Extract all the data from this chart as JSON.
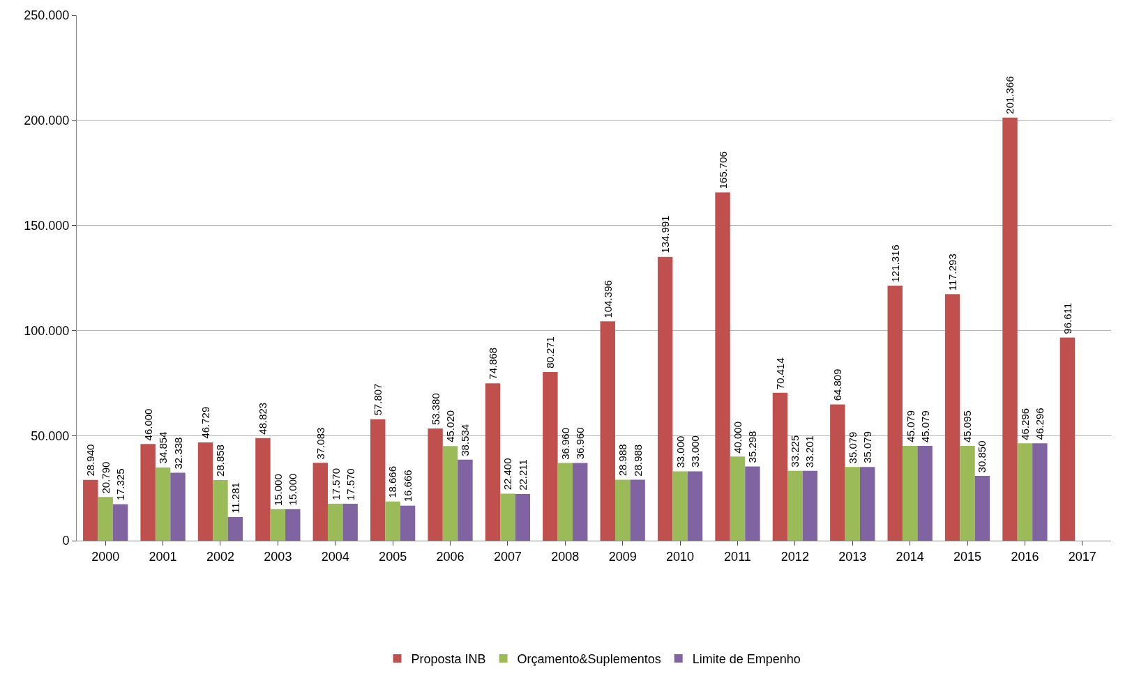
{
  "chart_data": {
    "type": "bar",
    "categories": [
      "2000",
      "2001",
      "2002",
      "2003",
      "2004",
      "2005",
      "2006",
      "2007",
      "2008",
      "2009",
      "2010",
      "2011",
      "2012",
      "2013",
      "2014",
      "2015",
      "2016",
      "2017"
    ],
    "series": [
      {
        "name": "Proposta INB",
        "color": "#c0504d",
        "values": [
          28940,
          46000,
          46729,
          48823,
          37083,
          57807,
          53380,
          74868,
          80271,
          104396,
          134991,
          165706,
          70414,
          64809,
          121316,
          117293,
          201366,
          96611
        ],
        "value_labels": [
          "28.940",
          "46.000",
          "46.729",
          "48.823",
          "37.083",
          "57.807",
          "53.380",
          "74.868",
          "80.271",
          "104.396",
          "134.991",
          "165.706",
          "70.414",
          "64.809",
          "121.316",
          "117.293",
          "201.366",
          "96.611"
        ]
      },
      {
        "name": "Orçamento&Suplementos",
        "color": "#9bbb59",
        "values": [
          20790,
          34854,
          28858,
          15000,
          17570,
          18666,
          45020,
          22400,
          36960,
          28988,
          33000,
          40000,
          33225,
          35079,
          45079,
          45095,
          46296,
          null
        ],
        "value_labels": [
          "20.790",
          "34.854",
          "28.858",
          "15.000",
          "17.570",
          "18.666",
          "45.020",
          "22.400",
          "36.960",
          "28.988",
          "33.000",
          "40.000",
          "33.225",
          "35.079",
          "45.079",
          "45.095",
          "46.296",
          null
        ]
      },
      {
        "name": "Limite de Empenho",
        "color": "#8064a2",
        "values": [
          17325,
          32338,
          11281,
          15000,
          17570,
          16666,
          38534,
          22211,
          36960,
          28988,
          33000,
          35298,
          33201,
          35079,
          45079,
          30850,
          46296,
          null
        ],
        "value_labels": [
          "17.325",
          "32.338",
          "11.281",
          "15.000",
          "17.570",
          "16.666",
          "38.534",
          "22.211",
          "36.960",
          "28.988",
          "33.000",
          "35.298",
          "33.201",
          "35.079",
          "45.079",
          "30.850",
          "46.296",
          null
        ]
      }
    ],
    "ylim": [
      0,
      250000
    ],
    "yticks": [
      0,
      {
        "value": 50000,
        "label": "50.000"
      },
      {
        "value": 100000,
        "label": "100.000"
      },
      {
        "value": 150000,
        "label": "150.000"
      },
      {
        "value": 200000,
        "label": "200.000"
      },
      {
        "value": 250000,
        "label": "250.000"
      }
    ],
    "grid": "y",
    "legend": "bottom"
  }
}
